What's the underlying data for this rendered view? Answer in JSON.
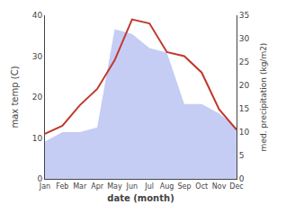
{
  "chart_data": {
    "type": "line",
    "categories": [
      "Jan",
      "Feb",
      "Mar",
      "Apr",
      "May",
      "Jun",
      "Jul",
      "Aug",
      "Sep",
      "Oct",
      "Nov",
      "Dec"
    ],
    "xlabel": "date (month)",
    "ylabel": "max temp (C)",
    "y2label": "med. precipitation (kg/m2)",
    "series": [
      {
        "type": "line",
        "color": "#c0392b",
        "values": [
          11,
          13,
          18,
          22,
          29,
          39,
          38,
          31,
          30,
          26,
          17,
          12
        ]
      },
      {
        "type": "area",
        "color": "#c5cdf5",
        "axis": "y2",
        "values": [
          8,
          10,
          10,
          11,
          32,
          31,
          28,
          27,
          16,
          16,
          14,
          11
        ]
      }
    ],
    "ylim": [
      0,
      40
    ],
    "yticks": [
      0,
      10,
      20,
      30,
      40
    ],
    "y2lim": [
      0,
      35
    ],
    "y2ticks": [
      0,
      5,
      10,
      15,
      20,
      25,
      30,
      35
    ],
    "grid": false
  }
}
